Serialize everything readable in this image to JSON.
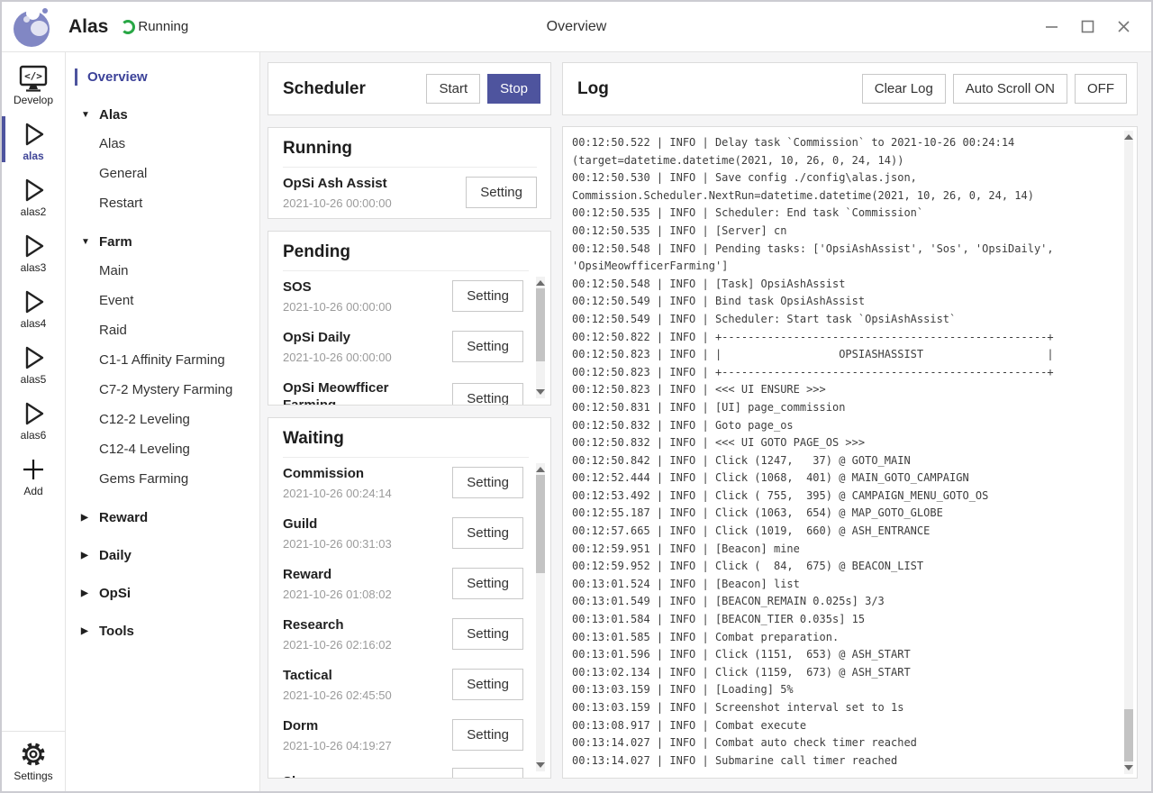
{
  "titlebar": {
    "app_name": "Alas",
    "status": "Running",
    "page_title": "Overview"
  },
  "sidebar": {
    "items": [
      {
        "label": "Develop",
        "icon": "develop-icon"
      },
      {
        "label": "alas",
        "icon": "play-icon",
        "active": true
      },
      {
        "label": "alas2",
        "icon": "play-icon"
      },
      {
        "label": "alas3",
        "icon": "play-icon"
      },
      {
        "label": "alas4",
        "icon": "play-icon"
      },
      {
        "label": "alas5",
        "icon": "play-icon"
      },
      {
        "label": "alas6",
        "icon": "play-icon"
      },
      {
        "label": "Add",
        "icon": "plus-icon"
      }
    ],
    "settings": {
      "label": "Settings",
      "icon": "gear-icon"
    }
  },
  "nav": {
    "items": [
      {
        "label": "Overview",
        "type": "link",
        "active": true
      },
      {
        "label": "Alas",
        "type": "group",
        "arrow": "▼"
      },
      {
        "label": "Alas",
        "type": "sub"
      },
      {
        "label": "General",
        "type": "sub"
      },
      {
        "label": "Restart",
        "type": "sub"
      },
      {
        "label": "Farm",
        "type": "group",
        "arrow": "▼"
      },
      {
        "label": "Main",
        "type": "sub"
      },
      {
        "label": "Event",
        "type": "sub"
      },
      {
        "label": "Raid",
        "type": "sub"
      },
      {
        "label": "C1-1 Affinity Farming",
        "type": "sub"
      },
      {
        "label": "C7-2 Mystery Farming",
        "type": "sub"
      },
      {
        "label": "C12-2 Leveling",
        "type": "sub"
      },
      {
        "label": "C12-4 Leveling",
        "type": "sub"
      },
      {
        "label": "Gems Farming",
        "type": "sub"
      },
      {
        "label": "Reward",
        "type": "group",
        "arrow": "▶"
      },
      {
        "label": "Daily",
        "type": "group",
        "arrow": "▶"
      },
      {
        "label": "OpSi",
        "type": "group",
        "arrow": "▶"
      },
      {
        "label": "Tools",
        "type": "group",
        "arrow": "▶"
      }
    ]
  },
  "scheduler": {
    "title": "Scheduler",
    "start_label": "Start",
    "stop_label": "Stop",
    "setting_label": "Setting",
    "running": {
      "title": "Running",
      "tasks": [
        {
          "name": "OpSi Ash Assist",
          "time": "2021-10-26 00:00:00"
        }
      ]
    },
    "pending": {
      "title": "Pending",
      "tasks": [
        {
          "name": "SOS",
          "time": "2021-10-26 00:00:00"
        },
        {
          "name": "OpSi Daily",
          "time": "2021-10-26 00:00:00"
        },
        {
          "name": "OpSi Meowfficer Farming",
          "time": ""
        }
      ]
    },
    "waiting": {
      "title": "Waiting",
      "tasks": [
        {
          "name": "Commission",
          "time": "2021-10-26 00:24:14"
        },
        {
          "name": "Guild",
          "time": "2021-10-26 00:31:03"
        },
        {
          "name": "Reward",
          "time": "2021-10-26 01:08:02"
        },
        {
          "name": "Research",
          "time": "2021-10-26 02:16:02"
        },
        {
          "name": "Tactical",
          "time": "2021-10-26 02:45:50"
        },
        {
          "name": "Dorm",
          "time": "2021-10-26 04:19:27"
        },
        {
          "name": "Shop",
          "time": ""
        }
      ]
    }
  },
  "log": {
    "title": "Log",
    "clear_label": "Clear Log",
    "autoscroll_on_label": "Auto Scroll ON",
    "autoscroll_off_label": "OFF",
    "lines": [
      "00:12:50.522 | INFO | Delay task `Commission` to 2021-10-26 00:24:14",
      "(target=datetime.datetime(2021, 10, 26, 0, 24, 14))",
      "00:12:50.530 | INFO | Save config ./config\\alas.json,",
      "Commission.Scheduler.NextRun=datetime.datetime(2021, 10, 26, 0, 24, 14)",
      "00:12:50.535 | INFO | Scheduler: End task `Commission`",
      "00:12:50.535 | INFO | [Server] cn",
      "00:12:50.548 | INFO | Pending tasks: ['OpsiAshAssist', 'Sos', 'OpsiDaily',",
      "'OpsiMeowfficerFarming']",
      "00:12:50.548 | INFO | [Task] OpsiAshAssist",
      "00:12:50.549 | INFO | Bind task OpsiAshAssist",
      "00:12:50.549 | INFO | Scheduler: Start task `OpsiAshAssist`",
      "00:12:50.822 | INFO | +--------------------------------------------------+",
      "00:12:50.823 | INFO | |                  OPSIASHASSIST                   |",
      "00:12:50.823 | INFO | +--------------------------------------------------+",
      "00:12:50.823 | INFO | <<< UI ENSURE >>>",
      "00:12:50.831 | INFO | [UI] page_commission",
      "00:12:50.832 | INFO | Goto page_os",
      "00:12:50.832 | INFO | <<< UI GOTO PAGE_OS >>>",
      "00:12:50.842 | INFO | Click (1247,   37) @ GOTO_MAIN",
      "00:12:52.444 | INFO | Click (1068,  401) @ MAIN_GOTO_CAMPAIGN",
      "00:12:53.492 | INFO | Click ( 755,  395) @ CAMPAIGN_MENU_GOTO_OS",
      "00:12:55.187 | INFO | Click (1063,  654) @ MAP_GOTO_GLOBE",
      "00:12:57.665 | INFO | Click (1019,  660) @ ASH_ENTRANCE",
      "00:12:59.951 | INFO | [Beacon] mine",
      "00:12:59.952 | INFO | Click (  84,  675) @ BEACON_LIST",
      "00:13:01.524 | INFO | [Beacon] list",
      "00:13:01.549 | INFO | [BEACON_REMAIN 0.025s] 3/3",
      "00:13:01.584 | INFO | [BEACON_TIER 0.035s] 15",
      "00:13:01.585 | INFO | Combat preparation.",
      "00:13:01.596 | INFO | Click (1151,  653) @ ASH_START",
      "00:13:02.134 | INFO | Click (1159,  673) @ ASH_START",
      "00:13:03.159 | INFO | [Loading] 5%",
      "00:13:03.159 | INFO | Screenshot interval set to 1s",
      "00:13:08.917 | INFO | Combat execute",
      "00:13:14.027 | INFO | Combat auto check timer reached",
      "00:13:14.027 | INFO | Submarine call timer reached"
    ]
  },
  "colors": {
    "accent": "#4e549e",
    "running_green": "#28a745"
  }
}
